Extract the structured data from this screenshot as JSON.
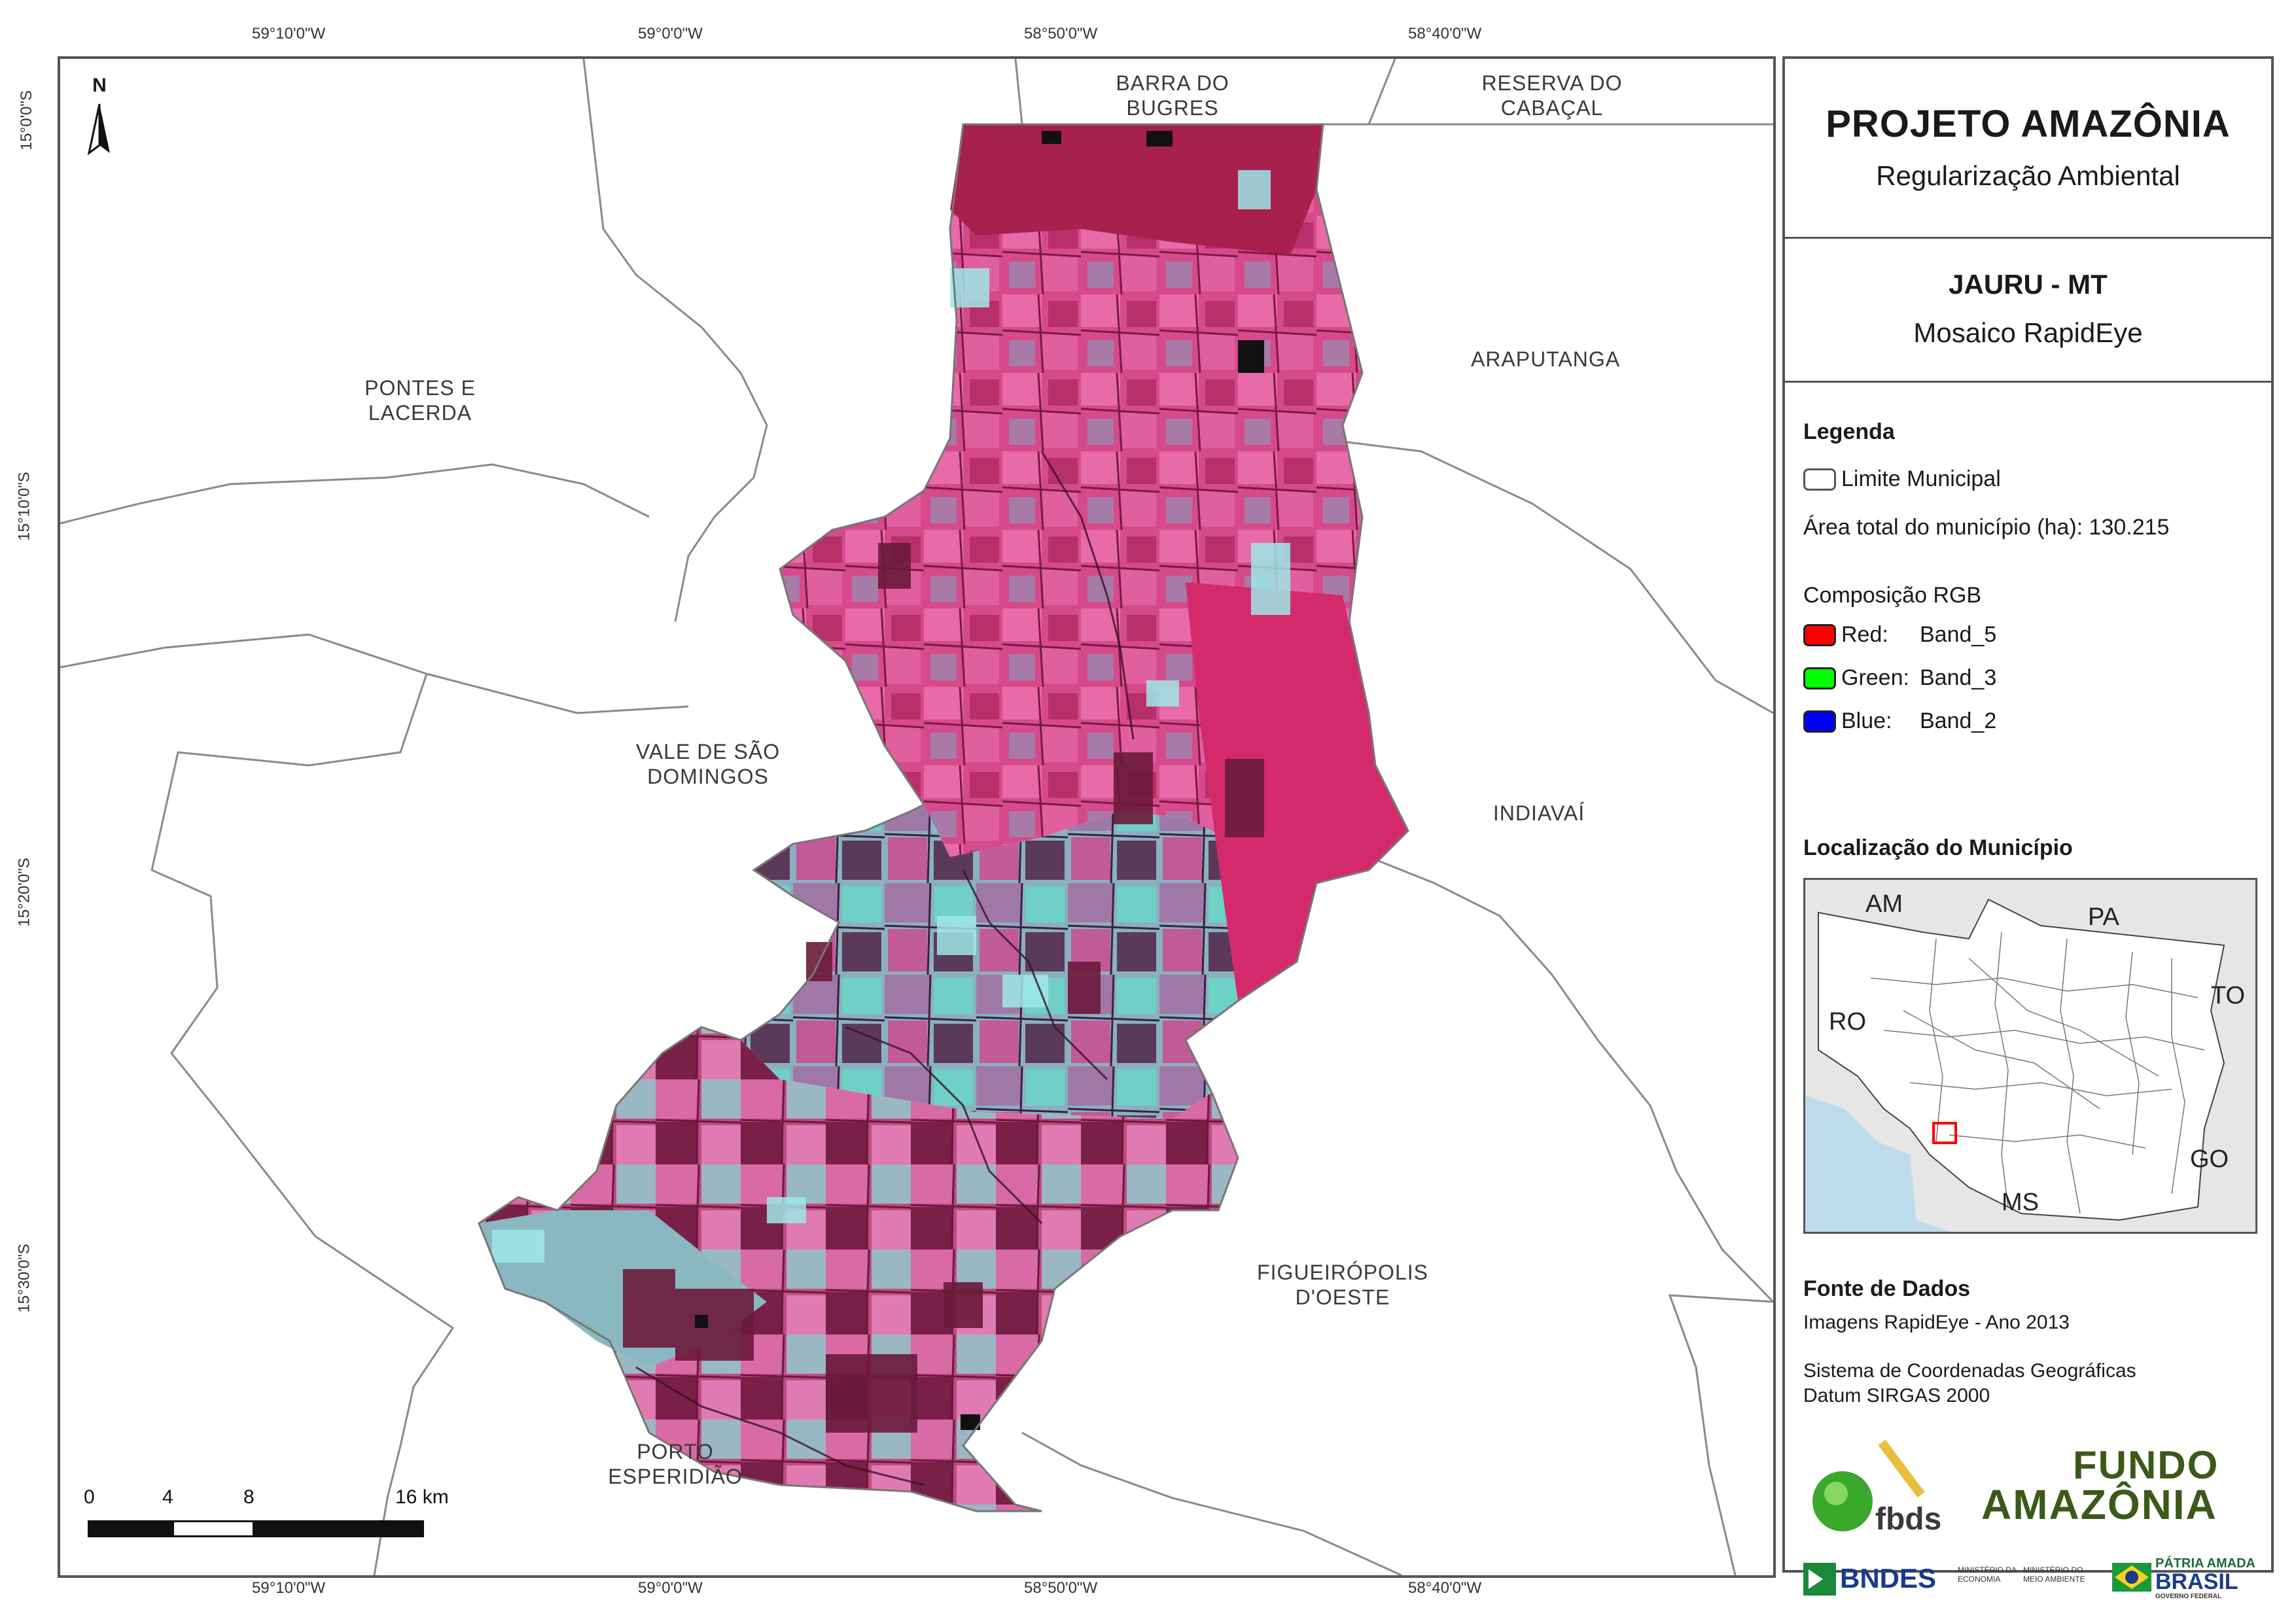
{
  "coordinates": {
    "top": [
      "59°10'0\"W",
      "59°0'0\"W",
      "58°50'0\"W",
      "58°40'0\"W"
    ],
    "bottom": [
      "59°10'0\"W",
      "59°0'0\"W",
      "58°50'0\"W",
      "58°40'0\"W"
    ],
    "left": [
      "15°0'0\"S",
      "15°10'0\"S",
      "15°20'0\"S",
      "15°30'0\"S"
    ]
  },
  "map": {
    "north_label": "N",
    "places": {
      "barra_do_bugres": "BARRA DO\nBUGRES",
      "reserva_do_cabacal": "RESERVA DO\nCABAÇAL",
      "pontes_e_lacerda": "PONTES E\nLACERDA",
      "araputanga": "ARAPUTANGA",
      "vale_de_sao_domingos": "VALE DE SÃO\nDOMINGOS",
      "indiavai": "INDIAVAÍ",
      "figueiropolis": "FIGUEIRÓPOLIS\nD'OESTE",
      "porto_esperidiao": "PORTO\nESPERIDIÃO"
    },
    "scale": {
      "labels": [
        "0",
        "4",
        "8",
        "16 km"
      ]
    },
    "colors": {
      "vegetation": "#a8204e",
      "pasture": "#e8559a",
      "bare": "#9ad6d6",
      "boundary": "#888888"
    }
  },
  "panel": {
    "title": "PROJETO AMAZÔNIA",
    "subtitle": "Regularização Ambiental",
    "municipality": "JAURU - MT",
    "product": "Mosaico RapidEye",
    "legend_heading": "Legenda",
    "legend_boundary": "Limite Municipal",
    "area_text": "Área total do município (ha): 130.215",
    "rgb_heading": "Composição RGB",
    "bands": [
      {
        "channel": "Red:",
        "band": "Band_5",
        "color": "#ff0000"
      },
      {
        "channel": "Green:",
        "band": "Band_3",
        "color": "#00ff00"
      },
      {
        "channel": "Blue:",
        "band": "Band_2",
        "color": "#0000ff"
      }
    ],
    "location_heading": "Localização do Município",
    "inset_states": [
      "AM",
      "PA",
      "TO",
      "RO",
      "GO",
      "MS"
    ],
    "source_heading": "Fonte de Dados",
    "source_images": "Imagens RapidEye - Ano 2013",
    "crs_line1": "Sistema de Coordenadas Geográficas",
    "crs_line2": "Datum SIRGAS 2000",
    "logos": {
      "fbds": "fbds",
      "fundo1": "FUNDO",
      "fundo2": "AMAZÔNIA",
      "bndes": "BNDES",
      "min_economia": "MINISTÉRIO DA ECONOMIA",
      "min_meio": "MINISTÉRIO DO MEIO AMBIENTE",
      "patria1": "PÁTRIA AMADA",
      "patria2": "BRASIL",
      "patria3": "GOVERNO FEDERAL"
    }
  }
}
